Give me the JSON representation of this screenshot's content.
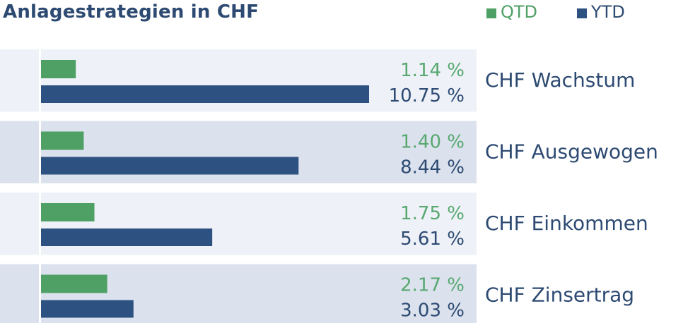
{
  "title": "Anlagestrategien in CHF",
  "legend": {
    "qtd": "QTD",
    "ytd": "YTD"
  },
  "colors": {
    "qtd": "#4fa065",
    "ytd": "#2d5180",
    "row_light": "#eef2f8",
    "row_dark": "#dbe2ee"
  },
  "chart_data": {
    "type": "bar",
    "orientation": "horizontal",
    "title": "Anlagestrategien in CHF",
    "categories": [
      "CHF Wachstum",
      "CHF Ausgewogen",
      "CHF Einkommen",
      "CHF Zinsertrag"
    ],
    "series": [
      {
        "name": "QTD",
        "values": [
          1.14,
          1.4,
          1.75,
          2.17
        ]
      },
      {
        "name": "YTD",
        "values": [
          10.75,
          8.44,
          5.61,
          3.03
        ]
      }
    ],
    "value_labels": {
      "QTD": [
        "1.14 %",
        "1.40 %",
        "1.75 %",
        "2.17 %"
      ],
      "YTD": [
        "10.75 %",
        "8.44 %",
        "5.61 %",
        "3.03 %"
      ]
    },
    "legend_position": "top-right",
    "grid": false
  }
}
